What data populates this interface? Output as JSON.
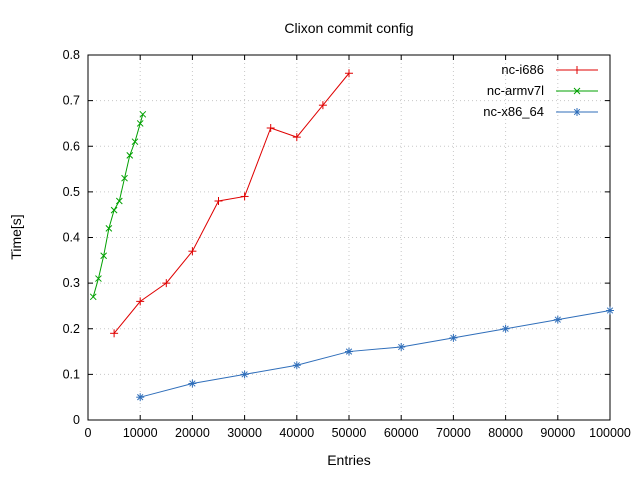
{
  "chart_data": {
    "type": "line",
    "title": "Clixon commit config",
    "xlabel": "Entries",
    "ylabel": "Time[s]",
    "xlim": [
      0,
      100000
    ],
    "ylim": [
      0,
      0.8
    ],
    "grid": true,
    "legend_position": "top-right-inside",
    "border_color": "#000000",
    "grid_color": "#c8c8c8",
    "x_ticks": [
      {
        "value": 0,
        "label": "0"
      },
      {
        "value": 10000,
        "label": "10000"
      },
      {
        "value": 20000,
        "label": "20000"
      },
      {
        "value": 30000,
        "label": "30000"
      },
      {
        "value": 40000,
        "label": "40000"
      },
      {
        "value": 50000,
        "label": "50000"
      },
      {
        "value": 60000,
        "label": "60000"
      },
      {
        "value": 70000,
        "label": "70000"
      },
      {
        "value": 80000,
        "label": "80000"
      },
      {
        "value": 90000,
        "label": "90000"
      },
      {
        "value": 100000,
        "label": "100000"
      }
    ],
    "y_ticks": [
      {
        "value": 0,
        "label": "0"
      },
      {
        "value": 0.1,
        "label": "0.1"
      },
      {
        "value": 0.2,
        "label": "0.2"
      },
      {
        "value": 0.3,
        "label": "0.3"
      },
      {
        "value": 0.4,
        "label": "0.4"
      },
      {
        "value": 0.5,
        "label": "0.5"
      },
      {
        "value": 0.6,
        "label": "0.6"
      },
      {
        "value": 0.7,
        "label": "0.7"
      },
      {
        "value": 0.8,
        "label": "0.8"
      }
    ],
    "series": [
      {
        "name": "nc-i686",
        "color": "#df0000",
        "marker": "plus",
        "points": [
          [
            5000,
            0.19
          ],
          [
            10000,
            0.26
          ],
          [
            15000,
            0.3
          ],
          [
            20000,
            0.37
          ],
          [
            25000,
            0.48
          ],
          [
            30000,
            0.49
          ],
          [
            35000,
            0.64
          ],
          [
            40000,
            0.62
          ],
          [
            45000,
            0.69
          ],
          [
            50000,
            0.76
          ]
        ]
      },
      {
        "name": "nc-armv7l",
        "color": "#00a000",
        "marker": "cross",
        "points": [
          [
            1000,
            0.27
          ],
          [
            2000,
            0.31
          ],
          [
            3000,
            0.36
          ],
          [
            4000,
            0.42
          ],
          [
            5000,
            0.46
          ],
          [
            6000,
            0.48
          ],
          [
            7000,
            0.53
          ],
          [
            8000,
            0.58
          ],
          [
            9000,
            0.61
          ],
          [
            10000,
            0.65
          ],
          [
            10500,
            0.67
          ]
        ]
      },
      {
        "name": "nc-x86_64",
        "color": "#2f6eba",
        "marker": "asterisk",
        "points": [
          [
            10000,
            0.05
          ],
          [
            20000,
            0.08
          ],
          [
            30000,
            0.1
          ],
          [
            40000,
            0.12
          ],
          [
            50000,
            0.15
          ],
          [
            60000,
            0.16
          ],
          [
            70000,
            0.18
          ],
          [
            80000,
            0.2
          ],
          [
            90000,
            0.22
          ],
          [
            100000,
            0.24
          ]
        ]
      }
    ]
  }
}
